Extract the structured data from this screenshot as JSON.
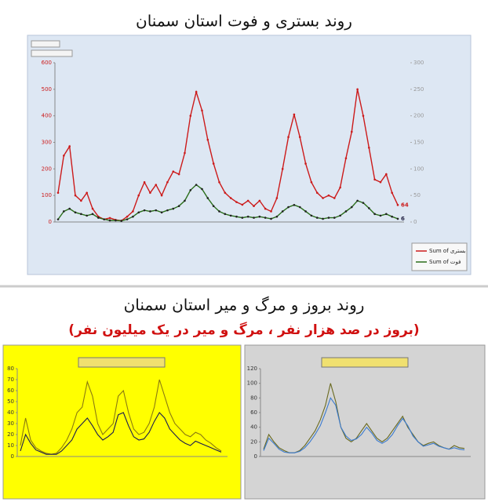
{
  "header": {
    "title": "روند بستری و فوت استان سمنان",
    "subtitle": "روند بروز و مرگ و میر استان سمنان",
    "note": "(بروز در صد هزار نفر ، مرگ و میر در یک میلیون نفر)"
  },
  "chart_data": [
    {
      "type": "line",
      "ylim": [
        0,
        600
      ],
      "yticks": [
        0,
        100,
        200,
        300,
        400,
        500,
        600
      ],
      "y2lim": [
        0,
        300
      ],
      "y2ticks": [
        0,
        50,
        100,
        150,
        200,
        250,
        300
      ],
      "series": [
        {
          "name": "Sum of بستری",
          "color": "#cc1a1a",
          "values": [
            110,
            250,
            285,
            100,
            80,
            110,
            50,
            20,
            10,
            15,
            8,
            5,
            20,
            40,
            100,
            150,
            110,
            140,
            100,
            150,
            190,
            180,
            260,
            400,
            490,
            420,
            310,
            220,
            150,
            110,
            90,
            75,
            65,
            80,
            60,
            80,
            50,
            40,
            90,
            200,
            320,
            405,
            320,
            220,
            150,
            110,
            90,
            100,
            90,
            130,
            240,
            340,
            500,
            400,
            280,
            160,
            150,
            180,
            110,
            64
          ]
        },
        {
          "name": "Sum of فوت",
          "color": "#2a6e1a",
          "axis": "y2",
          "values": [
            5,
            20,
            25,
            18,
            15,
            12,
            15,
            8,
            5,
            3,
            3,
            2,
            5,
            10,
            18,
            22,
            20,
            22,
            18,
            22,
            25,
            30,
            40,
            60,
            70,
            62,
            45,
            30,
            20,
            15,
            12,
            10,
            8,
            10,
            8,
            10,
            8,
            6,
            10,
            20,
            28,
            32,
            28,
            20,
            12,
            8,
            6,
            8,
            8,
            12,
            20,
            28,
            40,
            36,
            26,
            15,
            12,
            15,
            10,
            6
          ]
        }
      ]
    },
    {
      "type": "line",
      "ylim": [
        0,
        80
      ],
      "yticks": [
        0,
        10,
        20,
        30,
        40,
        50,
        60,
        70,
        80
      ],
      "series": [
        {
          "color": "#8a7a10",
          "values": [
            10,
            35,
            15,
            8,
            5,
            3,
            2,
            3,
            8,
            15,
            25,
            40,
            45,
            68,
            55,
            30,
            20,
            25,
            30,
            55,
            60,
            40,
            25,
            20,
            22,
            30,
            45,
            70,
            55,
            40,
            30,
            25,
            20,
            18,
            22,
            20,
            15,
            12,
            8,
            5
          ]
        },
        {
          "color": "#1a1a50",
          "values": [
            5,
            20,
            12,
            6,
            4,
            2,
            2,
            2,
            5,
            10,
            15,
            25,
            30,
            35,
            28,
            20,
            15,
            18,
            22,
            38,
            40,
            28,
            18,
            15,
            16,
            22,
            32,
            40,
            35,
            25,
            20,
            15,
            12,
            10,
            14,
            12,
            10,
            8,
            6,
            4
          ]
        }
      ]
    },
    {
      "type": "line",
      "ylim": [
        0,
        120
      ],
      "yticks": [
        0,
        20,
        40,
        60,
        80,
        100,
        120
      ],
      "series": [
        {
          "color": "#6a6a20",
          "values": [
            10,
            30,
            20,
            12,
            8,
            5,
            5,
            8,
            15,
            25,
            35,
            50,
            70,
            100,
            75,
            40,
            25,
            20,
            25,
            35,
            45,
            35,
            25,
            20,
            25,
            35,
            45,
            55,
            40,
            30,
            20,
            15,
            18,
            20,
            15,
            12,
            10,
            15,
            12,
            11
          ]
        },
        {
          "color": "#3a7ad0",
          "values": [
            8,
            25,
            18,
            10,
            6,
            5,
            5,
            7,
            12,
            20,
            30,
            42,
            60,
            80,
            70,
            40,
            28,
            22,
            24,
            30,
            40,
            32,
            22,
            18,
            22,
            30,
            42,
            52,
            42,
            28,
            20,
            14,
            16,
            18,
            14,
            12,
            10,
            12,
            10,
            9
          ]
        }
      ]
    }
  ]
}
